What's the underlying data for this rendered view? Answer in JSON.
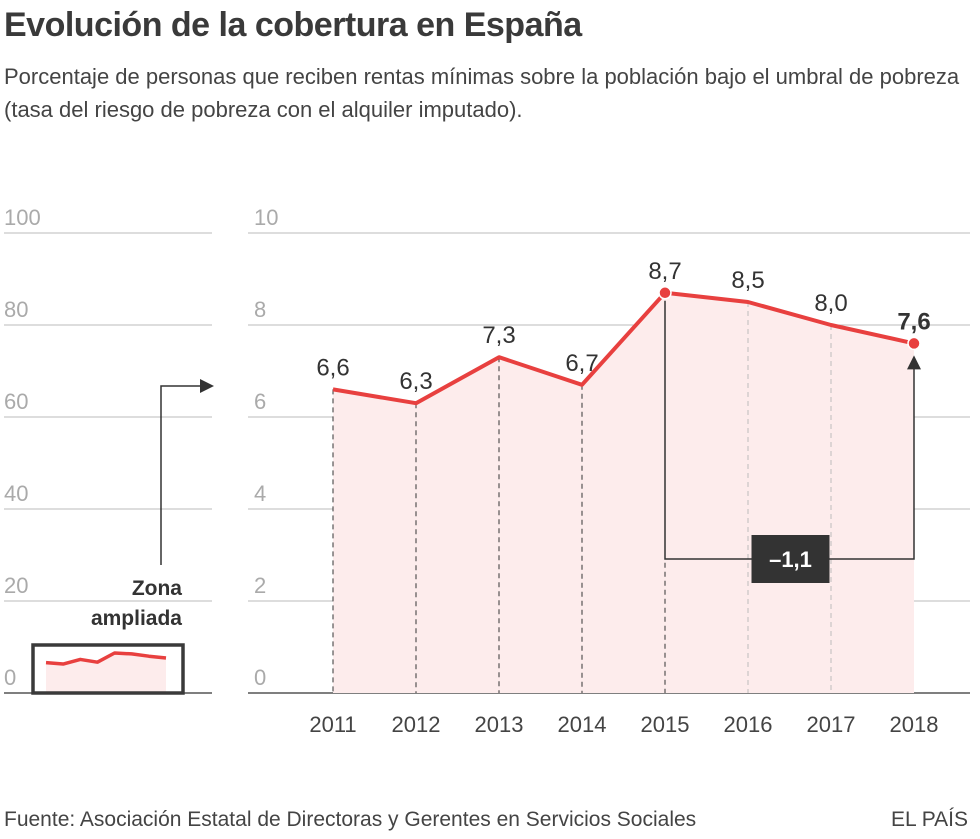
{
  "title": "Evolución de la cobertura en España",
  "subtitle": "Porcentaje de personas que reciben rentas mínimas sobre la población bajo el umbral de pobreza (tasa del riesgo de pobreza con el alquiler imputado).",
  "footer": {
    "source": "Fuente: Asociación Estatal de Directoras y Gerentes en Servicios Sociales",
    "brand": "EL PAÍS"
  },
  "colors": {
    "line": "#e8403f",
    "area": "#fdecec",
    "grid": "#bbbbbb",
    "box": "#333333",
    "zoom_box": "#3a3a3a"
  },
  "chart_data": [
    {
      "type": "line",
      "title": "",
      "categories": [
        "2011",
        "2012",
        "2013",
        "2014",
        "2015",
        "2016",
        "2017",
        "2018"
      ],
      "values": [
        6.6,
        6.3,
        7.3,
        6.7,
        8.7,
        8.5,
        8.0,
        7.6
      ],
      "value_labels": [
        "6,6",
        "6,3",
        "7,3",
        "6,7",
        "8,7",
        "8,5",
        "8,0",
        "7,6"
      ],
      "ylim": [
        0,
        10
      ],
      "yticks": [
        "0",
        "2",
        "4",
        "6",
        "8",
        "10"
      ],
      "ytick_values": [
        0,
        2,
        4,
        6,
        8,
        10
      ],
      "highlight_points": [
        "2015",
        "2018"
      ],
      "annotation": {
        "from": "2015",
        "to": "2018",
        "text": "–1,1"
      }
    },
    {
      "type": "line",
      "title": "",
      "values": [
        6.6,
        6.3,
        7.3,
        6.7,
        8.7,
        8.5,
        8.0,
        7.6
      ],
      "ylim": [
        0,
        100
      ],
      "yticks": [
        "0",
        "20",
        "40",
        "60",
        "80",
        "100"
      ],
      "ytick_values": [
        0,
        20,
        40,
        60,
        80,
        100
      ],
      "zoom_label_line1": "Zona",
      "zoom_label_line2": "ampliada"
    }
  ]
}
